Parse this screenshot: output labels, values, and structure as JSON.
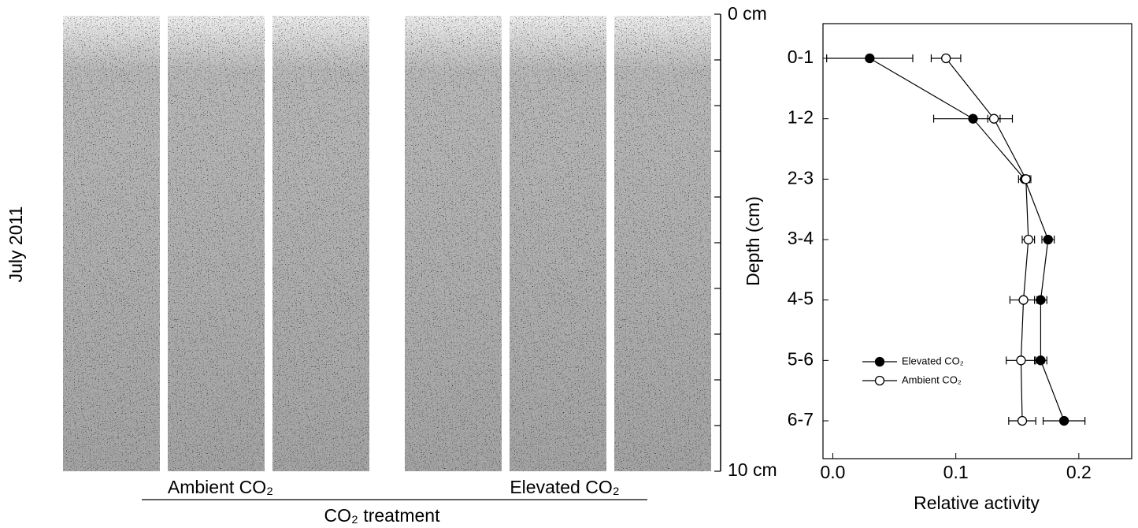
{
  "image_panel": {
    "row_label": "July 2011",
    "scale_top": "0 cm",
    "scale_bottom": "10 cm",
    "groups": [
      "Ambient CO₂",
      "Elevated CO₂"
    ],
    "xlabel": "CO₂ treatment"
  },
  "chart_data": {
    "type": "line",
    "orientation": "horizontal",
    "xlabel": "Relative activity",
    "ylabel": "Depth (cm)",
    "categories": [
      "0-1",
      "1-2",
      "2-3",
      "3-4",
      "4-5",
      "5-6",
      "6-7"
    ],
    "series": [
      {
        "name": "Elevated CO₂",
        "color": "#000000",
        "marker_fill": "#000000",
        "values": [
          0.03,
          0.114,
          0.156,
          0.175,
          0.169,
          0.169,
          0.188
        ],
        "errors": [
          0.035,
          0.032,
          0.005,
          0.005,
          0.005,
          0.005,
          0.017
        ]
      },
      {
        "name": "Ambient CO₂",
        "color": "#000000",
        "marker_fill": "#ffffff",
        "values": [
          0.092,
          0.131,
          0.157,
          0.159,
          0.155,
          0.153,
          0.154
        ],
        "errors": [
          0.012,
          0.005,
          0.003,
          0.005,
          0.011,
          0.012,
          0.011
        ]
      }
    ],
    "xlim": [
      -0.008,
      0.243
    ],
    "xticks": [
      {
        "value": 0,
        "label": "0.0"
      },
      0.1,
      0.2
    ],
    "legend": "lower left"
  }
}
